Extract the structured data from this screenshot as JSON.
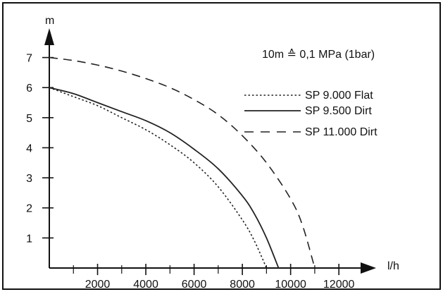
{
  "chart_data": {
    "type": "line",
    "xlabel": "l/h",
    "ylabel": "m",
    "xlim": [
      0,
      12900
    ],
    "ylim": [
      0,
      7.6
    ],
    "xticks": [
      2000,
      4000,
      6000,
      8000,
      10000,
      12000
    ],
    "xtick_labels": [
      "2000",
      "4000",
      "6000",
      "8000",
      "10000",
      "12000"
    ],
    "xtick_minor": [
      0,
      1000,
      3000,
      5000,
      7000,
      9000,
      11000
    ],
    "yticks": [
      1,
      2,
      3,
      4,
      5,
      6,
      7
    ],
    "ytick_labels": [
      "1",
      "2",
      "3",
      "4",
      "5",
      "6",
      "7"
    ],
    "annotation": "10m ≙ 0,1 MPa (1bar)",
    "legend_position": "top-right",
    "grid": false,
    "series": [
      {
        "name": "SP 9.000 Flat",
        "style": "dotted",
        "color": "#222222",
        "x": [
          0,
          1000,
          2000,
          3000,
          4000,
          5000,
          6000,
          7000,
          8000,
          8500,
          9000
        ],
        "y": [
          6.0,
          5.7,
          5.4,
          5.0,
          4.6,
          4.1,
          3.5,
          2.7,
          1.6,
          0.9,
          0.0
        ]
      },
      {
        "name": "SP 9.500 Dirt",
        "style": "solid",
        "color": "#222222",
        "x": [
          0,
          1000,
          2000,
          3000,
          4000,
          5000,
          6000,
          7000,
          8000,
          8500,
          9000,
          9500
        ],
        "y": [
          6.0,
          5.8,
          5.5,
          5.2,
          4.9,
          4.5,
          3.95,
          3.3,
          2.4,
          1.8,
          1.0,
          0.0
        ]
      },
      {
        "name": "SP 11.000 Dirt",
        "style": "dashed",
        "color": "#222222",
        "x": [
          0,
          1000,
          2000,
          3000,
          4000,
          5000,
          6000,
          7000,
          8000,
          9000,
          10000,
          10500,
          11000
        ],
        "y": [
          7.0,
          6.9,
          6.75,
          6.55,
          6.3,
          6.0,
          5.6,
          5.1,
          4.4,
          3.5,
          2.3,
          1.4,
          0.0
        ]
      }
    ]
  }
}
